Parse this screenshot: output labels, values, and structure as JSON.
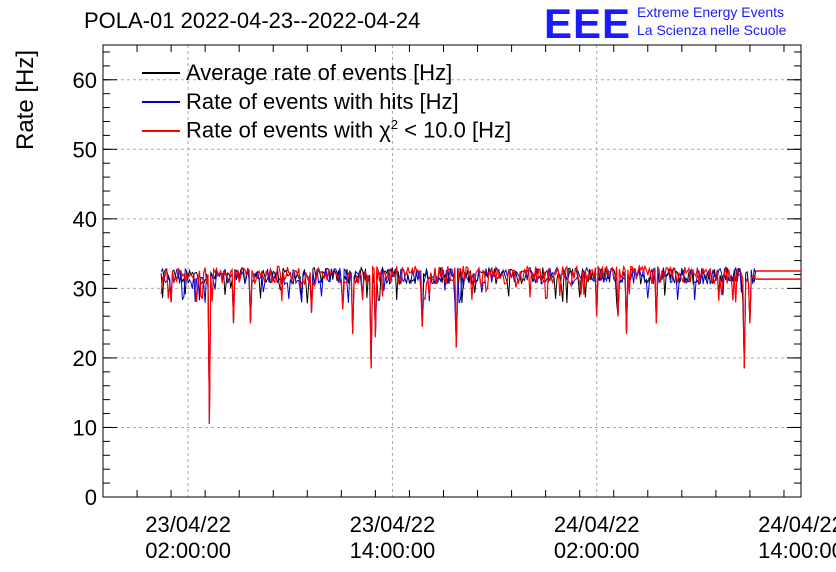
{
  "title": "POLA-01 2022-04-23--2022-04-24",
  "logo": {
    "mark": "EEE",
    "line1": "Extreme Energy Events",
    "line2": "La Scienza nelle Scuole",
    "color": "#1a1aff"
  },
  "chart_data": {
    "type": "line",
    "title": "POLA-01 2022-04-23--2022-04-24",
    "ylabel": "Rate [Hz]",
    "xlabel": "",
    "ylim": [
      0,
      65
    ],
    "yticks": [
      0,
      10,
      20,
      30,
      40,
      50,
      60
    ],
    "xlim": [
      "2022-04-22 21:00:00",
      "2022-04-24 14:00:00"
    ],
    "xticks": [
      {
        "t": "2022-04-23 02:00:00",
        "line1": "23/04/22",
        "line2": "02:00:00"
      },
      {
        "t": "2022-04-23 14:00:00",
        "line1": "23/04/22",
        "line2": "14:00:00"
      },
      {
        "t": "2022-04-24 02:00:00",
        "line1": "24/04/22",
        "line2": "02:00:00"
      },
      {
        "t": "2022-04-24 14:00:00",
        "line1": "24/04/22",
        "line2": "14:00:00"
      }
    ],
    "grid": true,
    "legend_position": "top-left",
    "series": [
      {
        "name": "Average rate of events [Hz]",
        "color": "#000000",
        "mean": 31.8
      },
      {
        "name": "Rate of events with hits [Hz]",
        "color": "#0000cc",
        "mean": 31.8
      },
      {
        "name": "Rate of events with χ² < 10.0 [Hz]",
        "label_pre": "Rate of events with χ",
        "label_sup": "2",
        "label_post": " < 10.0 [Hz]",
        "color": "#ff0000",
        "mean": 31.9
      }
    ],
    "data_start": "2022-04-23 00:25:00",
    "data_end": "2022-04-24 11:20:00",
    "band": [
      30.5,
      33.5
    ],
    "dips": [
      {
        "t": "2022-04-23 01:00:00",
        "y": 28.0
      },
      {
        "t": "2022-04-23 03:15:00",
        "y": 10.5
      },
      {
        "t": "2022-04-23 04:40:00",
        "y": 25.0
      },
      {
        "t": "2022-04-23 05:40:00",
        "y": 25.0
      },
      {
        "t": "2022-04-23 09:15:00",
        "y": 26.5
      },
      {
        "t": "2022-04-23 11:05:00",
        "y": 27.0
      },
      {
        "t": "2022-04-23 11:40:00",
        "y": 23.5
      },
      {
        "t": "2022-04-23 12:45:00",
        "y": 18.5
      },
      {
        "t": "2022-04-23 13:00:00",
        "y": 23.0
      },
      {
        "t": "2022-04-23 15:45:00",
        "y": 24.5
      },
      {
        "t": "2022-04-23 17:45:00",
        "y": 21.5
      },
      {
        "t": "2022-04-24 02:00:00",
        "y": 26.0
      },
      {
        "t": "2022-04-24 03:15:00",
        "y": 26.0
      },
      {
        "t": "2022-04-24 03:45:00",
        "y": 23.5
      },
      {
        "t": "2022-04-24 05:30:00",
        "y": 25.0
      },
      {
        "t": "2022-04-24 10:40:00",
        "y": 18.5
      },
      {
        "t": "2022-04-24 11:00:00",
        "y": 25.0
      }
    ],
    "tail": {
      "from": "2022-04-24 11:20:00",
      "y_red": 32.5,
      "y_black": 31.9
    }
  }
}
